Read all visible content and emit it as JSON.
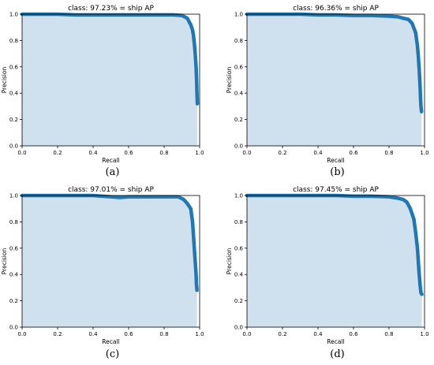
{
  "colors": {
    "line": "#1f77b4",
    "fill": "#cfe0ef",
    "axis": "#000000"
  },
  "chart_data": [
    {
      "type": "area",
      "title": "class: 97.23% = ship AP",
      "xlabel": "Recall",
      "ylabel": "Precision",
      "xlim": [
        0,
        1
      ],
      "ylim": [
        0,
        1
      ],
      "xticks": [
        "0.0",
        "0.2",
        "0.4",
        "0.6",
        "0.8",
        "1.0"
      ],
      "yticks": [
        "0.0",
        "0.2",
        "0.4",
        "0.6",
        "0.8",
        "1.0"
      ],
      "caption": "(a)",
      "grid": false,
      "series": [
        {
          "x": [
            0.0,
            0.1,
            0.2,
            0.3,
            0.4,
            0.5,
            0.6,
            0.7,
            0.8,
            0.85,
            0.9,
            0.93,
            0.95,
            0.96,
            0.965,
            0.97,
            0.975,
            0.98,
            0.983,
            0.985,
            0.987
          ],
          "y": [
            1.0,
            1.0,
            1.0,
            0.995,
            0.995,
            0.995,
            0.995,
            0.995,
            0.995,
            0.995,
            0.99,
            0.97,
            0.92,
            0.88,
            0.84,
            0.78,
            0.7,
            0.6,
            0.5,
            0.4,
            0.32
          ]
        }
      ]
    },
    {
      "type": "area",
      "title": "class: 96.36% = ship AP",
      "xlabel": "Recall",
      "ylabel": "Precision",
      "xlim": [
        0,
        1
      ],
      "ylim": [
        0,
        1
      ],
      "xticks": [
        "0.0",
        "0.2",
        "0.4",
        "0.6",
        "0.8",
        "1.0"
      ],
      "yticks": [
        "0.0",
        "0.2",
        "0.4",
        "0.6",
        "0.8",
        "1.0"
      ],
      "caption": "(b)",
      "grid": false,
      "series": [
        {
          "x": [
            0.0,
            0.1,
            0.2,
            0.3,
            0.4,
            0.5,
            0.6,
            0.7,
            0.8,
            0.85,
            0.88,
            0.91,
            0.93,
            0.95,
            0.96,
            0.965,
            0.97,
            0.975,
            0.978,
            0.98,
            0.983
          ],
          "y": [
            1.0,
            1.0,
            1.0,
            1.0,
            0.995,
            0.995,
            0.99,
            0.99,
            0.985,
            0.98,
            0.97,
            0.96,
            0.93,
            0.86,
            0.76,
            0.68,
            0.58,
            0.45,
            0.35,
            0.3,
            0.26
          ]
        }
      ]
    },
    {
      "type": "area",
      "title": "class: 97.01% = ship AP",
      "xlabel": "Recall",
      "ylabel": "Precision",
      "xlim": [
        0,
        1
      ],
      "ylim": [
        0,
        1
      ],
      "xticks": [
        "0.0",
        "0.2",
        "0.4",
        "0.6",
        "0.8",
        "1.0"
      ],
      "yticks": [
        "0.0",
        "0.2",
        "0.4",
        "0.6",
        "0.8",
        "1.0"
      ],
      "caption": "(c)",
      "grid": false,
      "series": [
        {
          "x": [
            0.0,
            0.1,
            0.2,
            0.3,
            0.4,
            0.5,
            0.55,
            0.6,
            0.7,
            0.8,
            0.88,
            0.91,
            0.93,
            0.95,
            0.96,
            0.965,
            0.97,
            0.975,
            0.98,
            0.982,
            0.985
          ],
          "y": [
            1.0,
            1.0,
            1.0,
            1.0,
            1.0,
            0.99,
            0.985,
            0.99,
            0.99,
            0.99,
            0.99,
            0.97,
            0.94,
            0.9,
            0.8,
            0.7,
            0.6,
            0.5,
            0.4,
            0.33,
            0.28
          ]
        }
      ]
    },
    {
      "type": "area",
      "title": "class: 97.45% = ship AP",
      "xlabel": "Recall",
      "ylabel": "Precision",
      "xlim": [
        0,
        1
      ],
      "ylim": [
        0,
        1
      ],
      "xticks": [
        "0.0",
        "0.2",
        "0.4",
        "0.6",
        "0.8",
        "1.0"
      ],
      "yticks": [
        "0.0",
        "0.2",
        "0.4",
        "0.6",
        "0.8",
        "1.0"
      ],
      "caption": "(d)",
      "grid": false,
      "series": [
        {
          "x": [
            0.0,
            0.1,
            0.2,
            0.3,
            0.4,
            0.5,
            0.6,
            0.7,
            0.8,
            0.85,
            0.88,
            0.9,
            0.92,
            0.94,
            0.95,
            0.96,
            0.965,
            0.97,
            0.975,
            0.98,
            0.985
          ],
          "y": [
            1.0,
            1.0,
            1.0,
            1.0,
            1.0,
            1.0,
            0.995,
            0.995,
            0.99,
            0.98,
            0.97,
            0.95,
            0.9,
            0.82,
            0.72,
            0.6,
            0.5,
            0.4,
            0.32,
            0.26,
            0.25
          ]
        }
      ]
    }
  ]
}
